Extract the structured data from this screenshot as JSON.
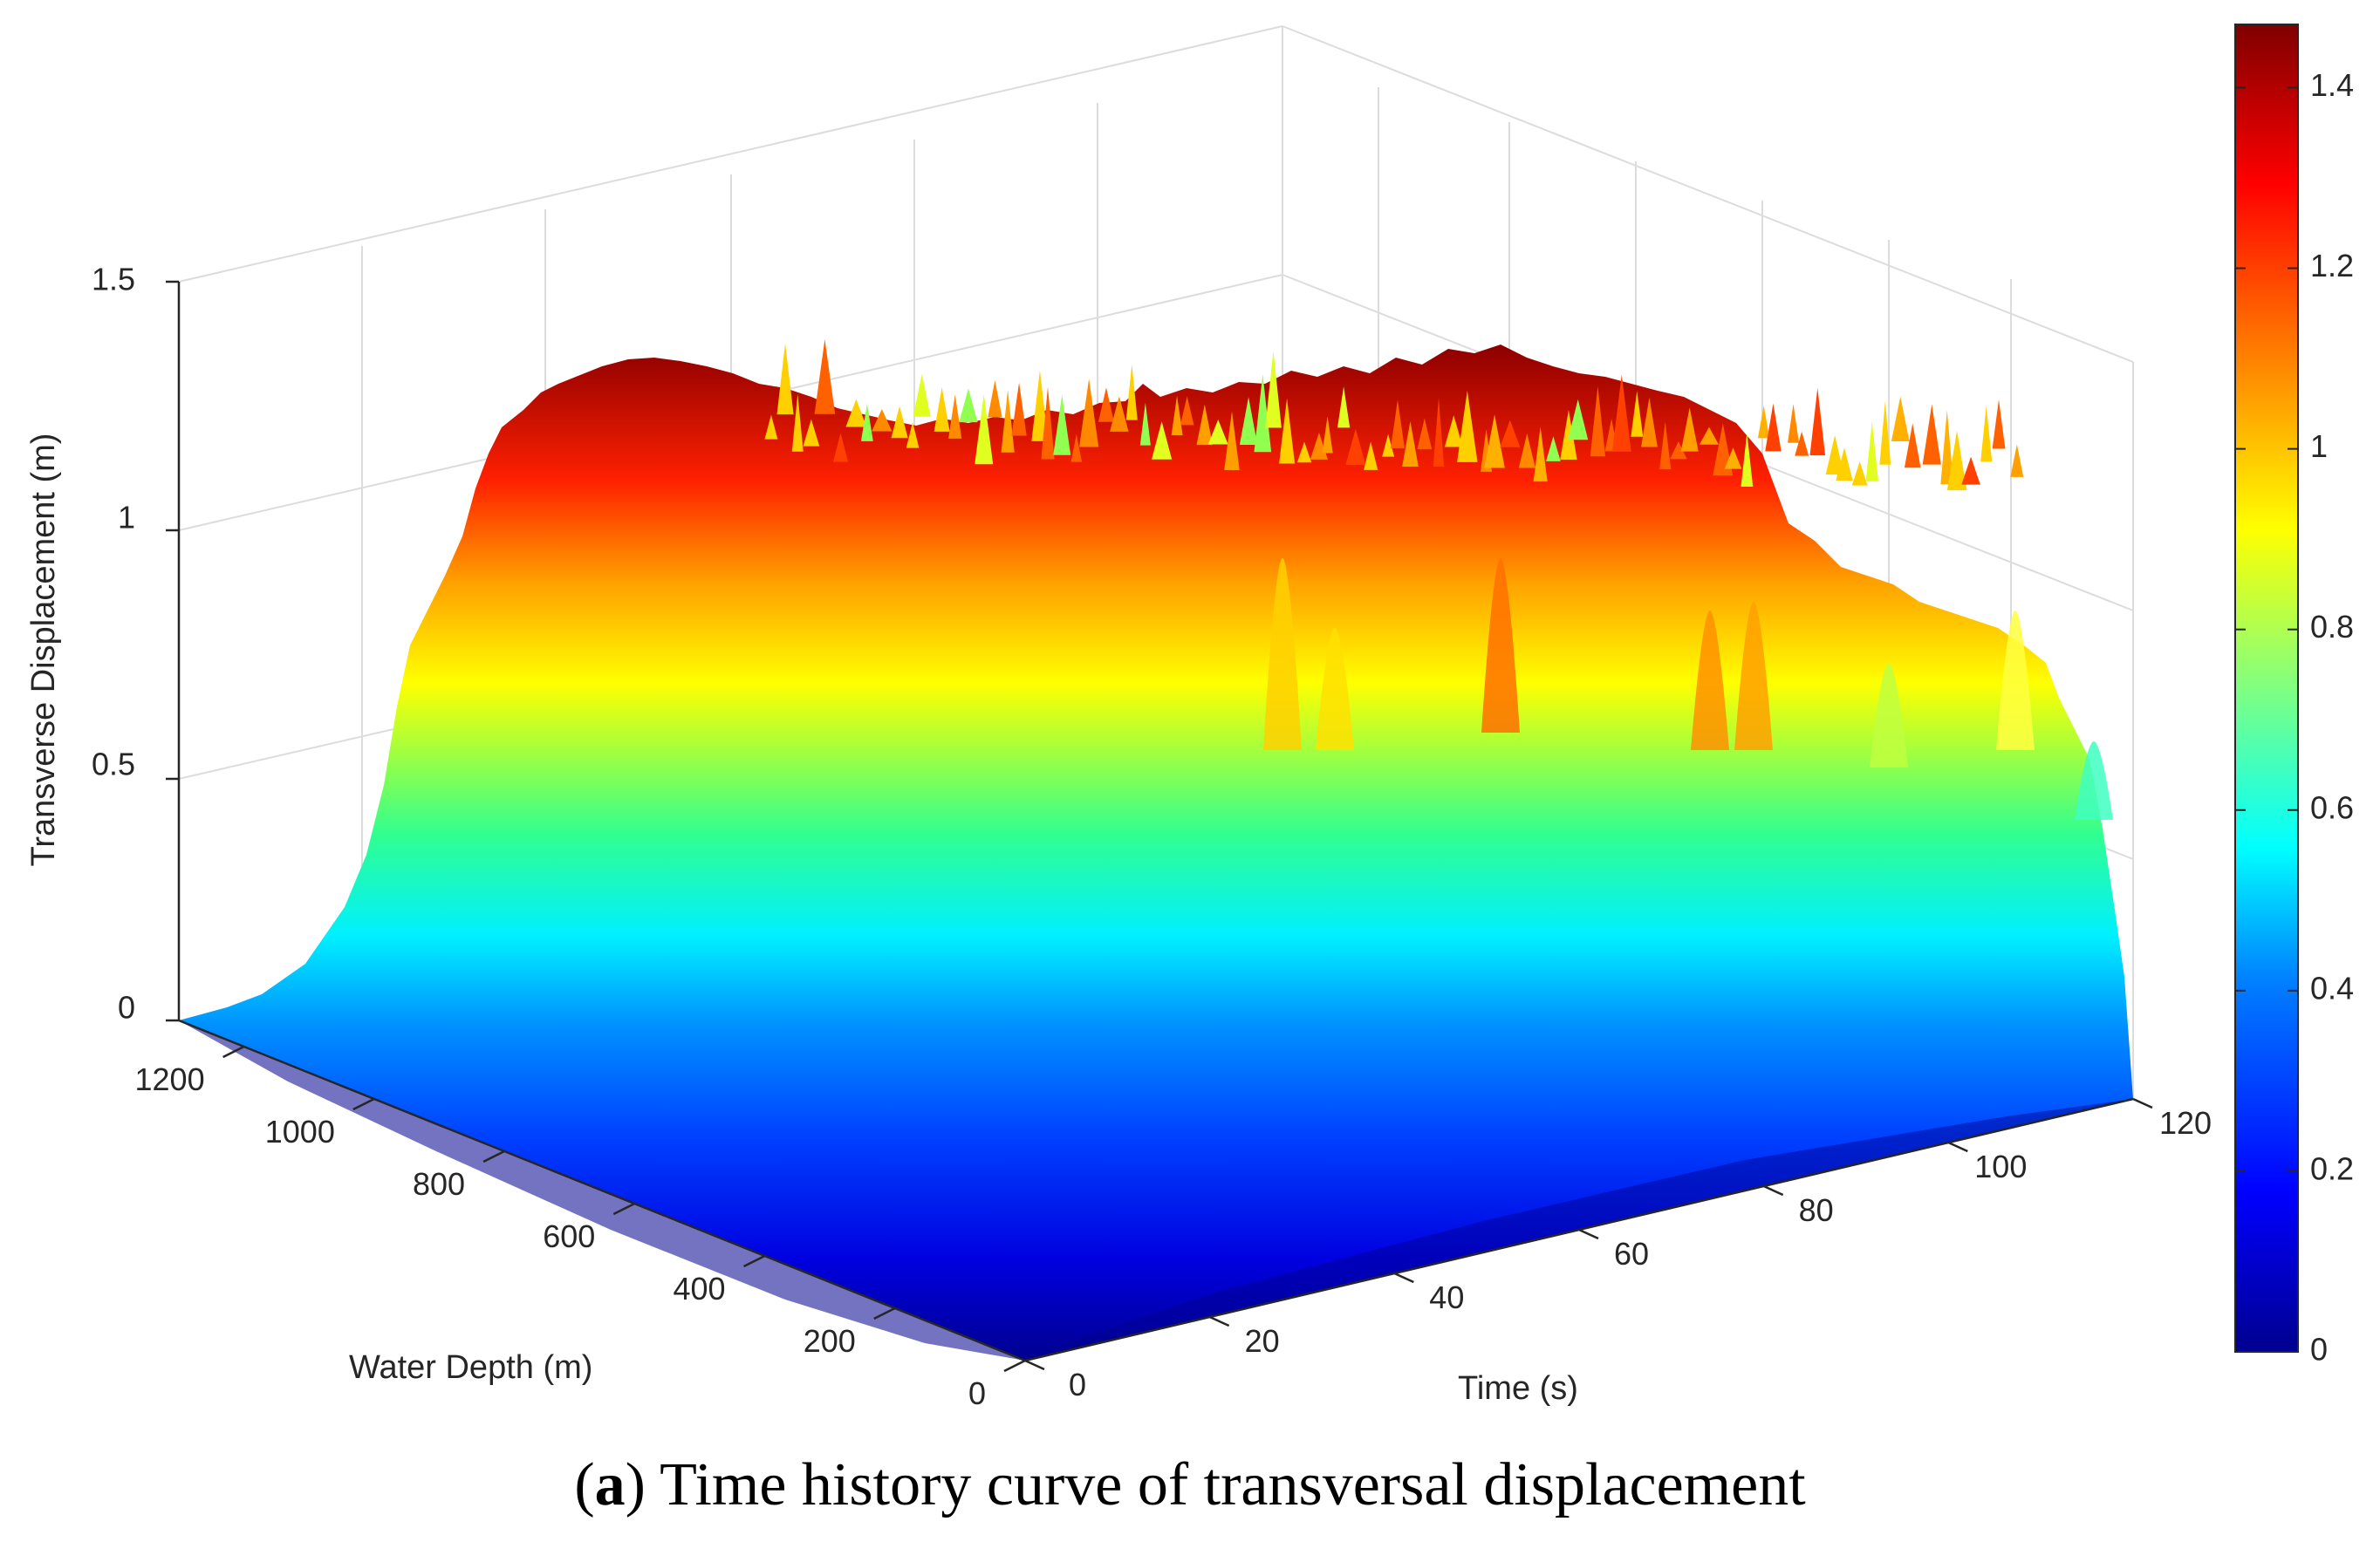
{
  "chart_data": {
    "type": "surface",
    "title": "",
    "xlabel": "Time (s)",
    "ylabel": "Water Depth (m)",
    "zlabel": "Transverse Displacement (m)",
    "x_ticks": [
      "0",
      "20",
      "40",
      "60",
      "80",
      "100",
      "120"
    ],
    "y_ticks": [
      "0",
      "200",
      "400",
      "600",
      "800",
      "1000",
      "1200"
    ],
    "z_ticks": [
      "0",
      "0.5",
      "1",
      "1.5"
    ],
    "xlim": [
      0,
      120
    ],
    "ylim": [
      0,
      1300
    ],
    "zlim": [
      0,
      1.5
    ],
    "colormap": "jet",
    "colorbar": {
      "range": [
        0,
        1.47
      ],
      "ticks": [
        "0",
        "0.2",
        "0.4",
        "0.6",
        "0.8",
        "1",
        "1.2",
        "1.4"
      ]
    },
    "surface_profile": {
      "depth_m": [
        0,
        50,
        100,
        150,
        200,
        300,
        400,
        500,
        600,
        700,
        800,
        900,
        1000,
        1100,
        1200,
        1300
      ],
      "amplitude_m_early": [
        0.0,
        0.05,
        0.08,
        0.12,
        0.22,
        0.45,
        0.65,
        0.8,
        0.93,
        1.05,
        1.15,
        1.22,
        1.28,
        1.33,
        1.38,
        1.42
      ],
      "amplitude_m_late": [
        0.0,
        0.05,
        0.08,
        0.12,
        0.22,
        0.4,
        0.55,
        0.66,
        0.74,
        0.82,
        0.9,
        0.96,
        1.0,
        1.02,
        1.04,
        1.05
      ]
    },
    "peak_value": 1.47
  },
  "caption": {
    "letter": "a",
    "open": "(",
    "close": ")",
    "text": " Time history curve of transversal displacement"
  },
  "colors": {
    "jet": [
      "#00008f",
      "#0000ff",
      "#0080ff",
      "#00ffff",
      "#80ff80",
      "#ffff00",
      "#ff8000",
      "#ff0000",
      "#800000"
    ]
  }
}
